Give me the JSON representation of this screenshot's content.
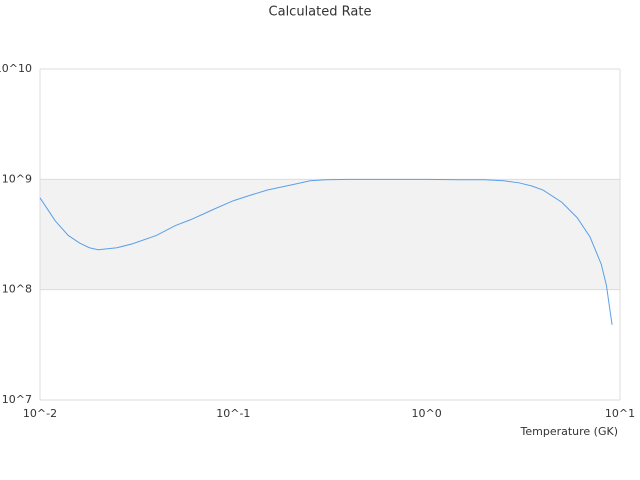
{
  "chart_data": {
    "type": "line",
    "title": "Calculated Rate",
    "x_label": "Temperature (GK)",
    "x_log": true,
    "y_log": true,
    "grid": true,
    "xlim": [
      0.01,
      10
    ],
    "ylim": [
      10000000,
      10000000000
    ],
    "xticks": [
      {
        "value": 0.01,
        "label": "10^-2"
      },
      {
        "value": 0.1,
        "label": "10^-1"
      },
      {
        "value": 1,
        "label": "10^0"
      },
      {
        "value": 10,
        "label": "10^1"
      }
    ],
    "yticks": [
      {
        "value": 10000000,
        "label": "10^7"
      },
      {
        "value": 100000000,
        "label": "10^8"
      },
      {
        "value": 1000000000,
        "label": "10^9"
      },
      {
        "value": 10000000000,
        "label": "10^10"
      }
    ],
    "x": [
      0.01,
      0.012,
      0.014,
      0.016,
      0.018,
      0.02,
      0.025,
      0.03,
      0.04,
      0.05,
      0.06,
      0.07,
      0.08,
      0.1,
      0.12,
      0.15,
      0.2,
      0.25,
      0.3,
      0.4,
      0.5,
      0.7,
      1,
      1.5,
      2,
      2.5,
      3,
      3.5,
      4,
      5,
      6,
      7,
      8,
      8.5,
      9.1
    ],
    "series": [
      {
        "color": "#5aa0e6",
        "values": [
          680000000,
          420000000,
          310000000,
          265000000,
          240000000,
          230000000,
          240000000,
          260000000,
          310000000,
          380000000,
          430000000,
          485000000,
          540000000,
          640000000,
          710000000,
          800000000,
          890000000,
          970000000,
          990000000,
          1000000000,
          1000000000,
          1000000000,
          1000000000,
          990000000,
          990000000,
          970000000,
          930000000,
          870000000,
          800000000,
          620000000,
          450000000,
          300000000,
          170000000,
          110000000,
          48000000
        ]
      }
    ]
  }
}
